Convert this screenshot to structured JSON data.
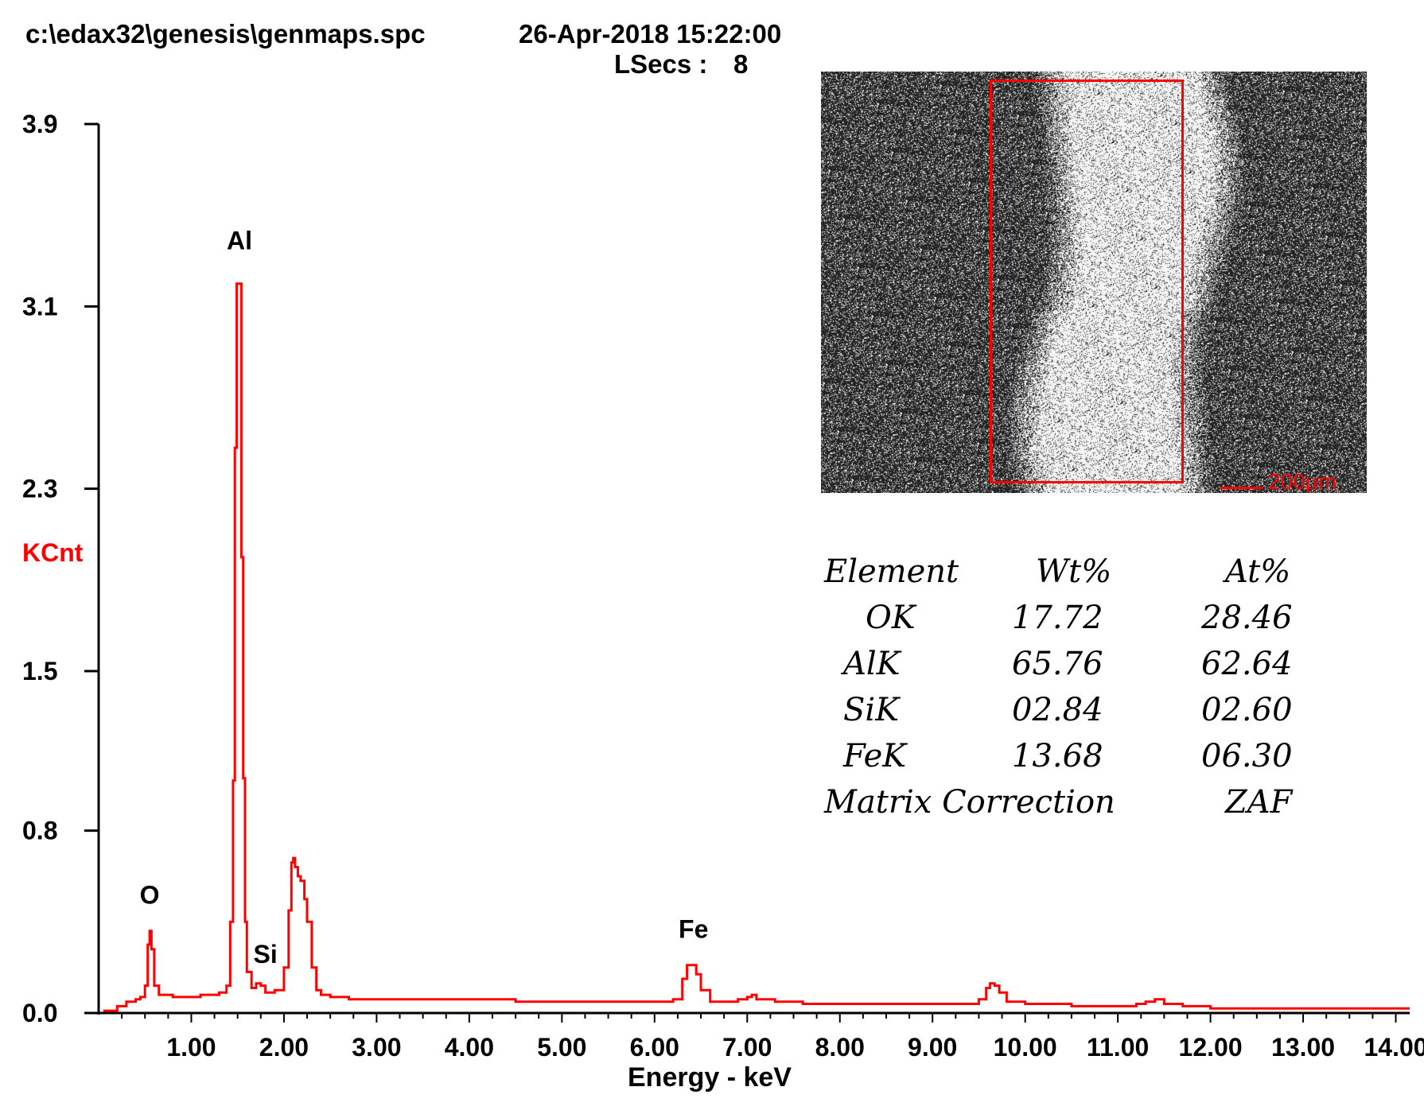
{
  "header": {
    "file": "c:\\edax32\\genesis\\genmaps.spc",
    "datetime": "26-Apr-2018 15:22:00",
    "lsecs_label": "LSecs :",
    "lsecs_value": "8"
  },
  "chart_data": {
    "type": "line",
    "xlabel": "Energy - keV",
    "ylabel": "KCnt",
    "xlim": [
      0,
      14.15
    ],
    "ylim": [
      0,
      3.9
    ],
    "xticks": [
      "1.00",
      "2.00",
      "3.00",
      "4.00",
      "5.00",
      "6.00",
      "7.00",
      "8.00",
      "9.00",
      "10.00",
      "11.00",
      "12.00",
      "13.00",
      "14.00"
    ],
    "yticks": [
      "0.0",
      "0.8",
      "1.5",
      "2.3",
      "3.1",
      "3.9"
    ],
    "series": [
      {
        "color": "#ff0000",
        "x": [
          0.05,
          0.2,
          0.3,
          0.4,
          0.45,
          0.5,
          0.53,
          0.55,
          0.57,
          0.6,
          0.65,
          0.7,
          0.8,
          0.9,
          1.0,
          1.1,
          1.2,
          1.3,
          1.38,
          1.42,
          1.45,
          1.47,
          1.49,
          1.5,
          1.52,
          1.54,
          1.56,
          1.58,
          1.6,
          1.65,
          1.7,
          1.75,
          1.8,
          1.85,
          1.9,
          2.0,
          2.05,
          2.08,
          2.1,
          2.12,
          2.15,
          2.18,
          2.22,
          2.25,
          2.3,
          2.35,
          2.4,
          2.5,
          2.7,
          3.0,
          3.5,
          4.0,
          4.5,
          5.0,
          5.5,
          6.0,
          6.2,
          6.3,
          6.35,
          6.4,
          6.45,
          6.5,
          6.6,
          6.8,
          6.9,
          7.0,
          7.05,
          7.1,
          7.3,
          7.6,
          8.0,
          8.5,
          9.0,
          9.3,
          9.5,
          9.58,
          9.62,
          9.67,
          9.72,
          9.8,
          10.0,
          10.5,
          11.0,
          11.2,
          11.3,
          11.4,
          11.5,
          11.7,
          12.0,
          12.5,
          13.0,
          13.5,
          14.0,
          14.15
        ],
        "y": [
          0.01,
          0.03,
          0.05,
          0.06,
          0.07,
          0.12,
          0.3,
          0.36,
          0.28,
          0.12,
          0.08,
          0.08,
          0.07,
          0.07,
          0.07,
          0.08,
          0.08,
          0.09,
          0.12,
          0.4,
          1.02,
          2.48,
          3.2,
          3.2,
          3.2,
          2.0,
          1.03,
          0.4,
          0.18,
          0.11,
          0.13,
          0.12,
          0.09,
          0.09,
          0.1,
          0.2,
          0.45,
          0.66,
          0.68,
          0.64,
          0.6,
          0.58,
          0.5,
          0.4,
          0.2,
          0.1,
          0.08,
          0.07,
          0.06,
          0.06,
          0.06,
          0.06,
          0.05,
          0.05,
          0.05,
          0.05,
          0.06,
          0.15,
          0.21,
          0.21,
          0.17,
          0.1,
          0.05,
          0.05,
          0.06,
          0.07,
          0.08,
          0.06,
          0.05,
          0.04,
          0.04,
          0.04,
          0.04,
          0.04,
          0.06,
          0.11,
          0.13,
          0.12,
          0.09,
          0.05,
          0.04,
          0.03,
          0.03,
          0.04,
          0.05,
          0.06,
          0.04,
          0.03,
          0.02,
          0.02,
          0.02,
          0.02,
          0.02,
          0.02
        ]
      }
    ],
    "peak_labels": [
      {
        "text": "O",
        "x": 0.55,
        "y": 0.48
      },
      {
        "text": "Al",
        "x": 1.52,
        "y": 3.35
      },
      {
        "text": "Si",
        "x": 1.8,
        "y": 0.22
      },
      {
        "text": "Fe",
        "x": 6.42,
        "y": 0.33
      }
    ],
    "grid": false
  },
  "inset": {
    "scale_label": "200μm"
  },
  "results_table": {
    "headers": [
      "Element",
      "Wt%",
      "At%"
    ],
    "rows": [
      {
        "element": "OK",
        "wt": "17.72",
        "at": "28.46"
      },
      {
        "element": "AlK",
        "wt": "65.76",
        "at": "62.64"
      },
      {
        "element": "SiK",
        "wt": "02.84",
        "at": "02.60"
      },
      {
        "element": "FeK",
        "wt": "13.68",
        "at": "06.30"
      }
    ],
    "footer_label": "Matrix Correction",
    "footer_value": "ZAF"
  }
}
